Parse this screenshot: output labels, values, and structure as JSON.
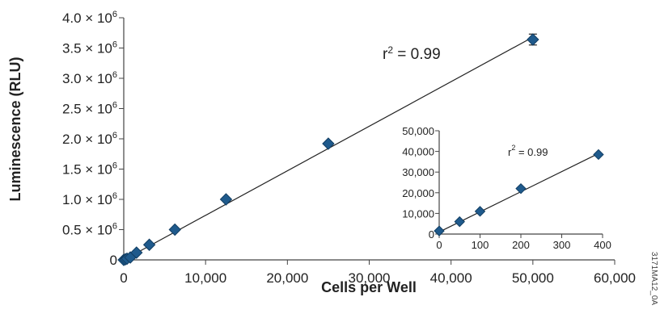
{
  "chart_data": [
    {
      "type": "scatter",
      "xlabel": "Cells per Well",
      "ylabel": "Luminescence (RLU)",
      "xlim": [
        0,
        60000
      ],
      "ylim": [
        0,
        4000000
      ],
      "x_ticks": [
        0,
        10000,
        20000,
        30000,
        40000,
        50000,
        60000
      ],
      "x_tick_labels": [
        "0",
        "10,000",
        "20,000",
        "30,000",
        "40,000",
        "50,000",
        "60,000"
      ],
      "y_ticks": [
        0,
        500000,
        1000000,
        1500000,
        2000000,
        2500000,
        3000000,
        3500000,
        4000000
      ],
      "y_tick_labels": [
        {
          "mantissa": "0",
          "exp": ""
        },
        {
          "mantissa": "0.5 × 10",
          "exp": "6"
        },
        {
          "mantissa": "1.0 × 10",
          "exp": "6"
        },
        {
          "mantissa": "1.5 × 10",
          "exp": "6"
        },
        {
          "mantissa": "2.0 × 10",
          "exp": "6"
        },
        {
          "mantissa": "2.5 × 10",
          "exp": "6"
        },
        {
          "mantissa": "3.0 × 10",
          "exp": "6"
        },
        {
          "mantissa": "3.5 × 10",
          "exp": "6"
        },
        {
          "mantissa": "4.0 × 10",
          "exp": "6"
        }
      ],
      "points": [
        {
          "x": 0,
          "y": 0
        },
        {
          "x": 200,
          "y": 10000
        },
        {
          "x": 400,
          "y": 20000
        },
        {
          "x": 800,
          "y": 40000
        },
        {
          "x": 1560,
          "y": 120000
        },
        {
          "x": 3125,
          "y": 250000
        },
        {
          "x": 6250,
          "y": 500000
        },
        {
          "x": 12500,
          "y": 1000000
        },
        {
          "x": 25000,
          "y": 1920000
        },
        {
          "x": 50000,
          "y": 3640000,
          "err": 90000
        }
      ],
      "fit_line": {
        "x": [
          0,
          50000
        ],
        "y": [
          0,
          3680000
        ]
      },
      "annotation": {
        "prefix": "r",
        "sup": "2",
        "suffix": " = 0.99"
      },
      "grid": false
    },
    {
      "type": "scatter",
      "inset": true,
      "xlim": [
        0,
        400
      ],
      "ylim": [
        0,
        50000
      ],
      "x_ticks": [
        0,
        100,
        200,
        300,
        400
      ],
      "x_tick_labels": [
        "0",
        "100",
        "200",
        "300",
        "400"
      ],
      "y_ticks": [
        0,
        10000,
        20000,
        30000,
        40000,
        50000
      ],
      "y_tick_labels": [
        "0",
        "10,000",
        "20,000",
        "30,000",
        "40,000",
        "50,000"
      ],
      "points": [
        {
          "x": 0,
          "y": 1500
        },
        {
          "x": 50,
          "y": 6000
        },
        {
          "x": 100,
          "y": 11000
        },
        {
          "x": 200,
          "y": 22000
        },
        {
          "x": 390,
          "y": 38500
        }
      ],
      "fit_line": {
        "x": [
          0,
          390
        ],
        "y": [
          1000,
          39000
        ]
      },
      "annotation": {
        "prefix": "r",
        "sup": "2",
        "suffix": " = 0.99"
      },
      "grid": false
    }
  ],
  "figure_code": "3171MA12_0A",
  "colors": {
    "marker": "#1f5a8c",
    "marker_edge": "#123e63",
    "line": "#222222",
    "axis": "#444444"
  }
}
